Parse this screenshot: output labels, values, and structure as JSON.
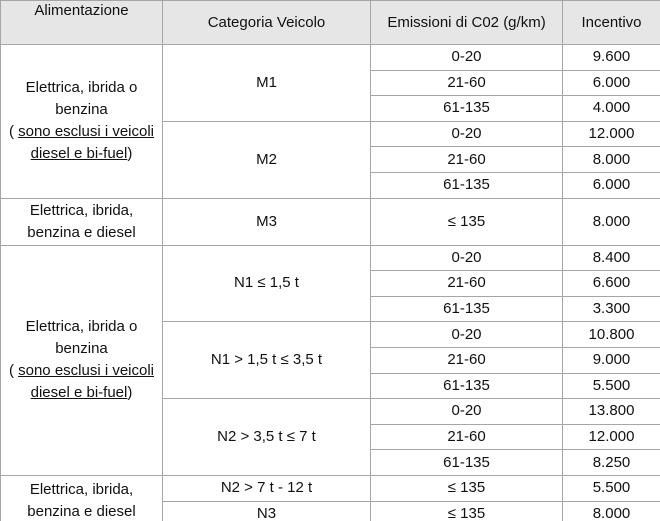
{
  "header": [
    "Alimentazione",
    "Categoria Veicolo",
    "Emissioni di C02 (g/km)",
    "Incentivo"
  ],
  "groups": [
    {
      "fuel": "Elettrica, ibrida o benzina",
      "note_open": "(",
      "note": "sono esclusi i veicoli diesel e bi-fuel",
      "note_close": ")",
      "categories": [
        {
          "name": "M1",
          "rows": [
            [
              "0-20",
              "9.600"
            ],
            [
              "21-60",
              "6.000"
            ],
            [
              "61-135",
              "4.000"
            ]
          ]
        },
        {
          "name": "M2",
          "rows": [
            [
              "0-20",
              "12.000"
            ],
            [
              "21-60",
              "8.000"
            ],
            [
              "61-135",
              "6.000"
            ]
          ]
        }
      ]
    },
    {
      "fuel": "Elettrica, ibrida, benzina e diesel",
      "categories": [
        {
          "name": "M3",
          "rows": [
            [
              "≤ 135",
              "8.000"
            ]
          ]
        }
      ]
    },
    {
      "fuel": "Elettrica, ibrida o benzina",
      "note_open": "(",
      "note": "sono esclusi i veicoli diesel e bi-fuel",
      "note_close": ")",
      "categories": [
        {
          "name": "N1 ≤ 1,5 t",
          "rows": [
            [
              "0-20",
              "8.400"
            ],
            [
              "21-60",
              "6.600"
            ],
            [
              "61-135",
              "3.300"
            ]
          ]
        },
        {
          "name": "N1 > 1,5 t ≤ 3,5 t",
          "rows": [
            [
              "0-20",
              "10.800"
            ],
            [
              "21-60",
              "9.000"
            ],
            [
              "61-135",
              "5.500"
            ]
          ]
        },
        {
          "name": "N2 > 3,5 t ≤ 7 t",
          "rows": [
            [
              "0-20",
              "13.800"
            ],
            [
              "21-60",
              "12.000"
            ],
            [
              "61-135",
              "8.250"
            ]
          ]
        }
      ]
    },
    {
      "fuel": "Elettrica, ibrida, benzina e diesel",
      "categories": [
        {
          "name": "N2 > 7 t - 12 t",
          "rows": [
            [
              "≤ 135",
              "5.500"
            ]
          ]
        },
        {
          "name": "N3",
          "rows": [
            [
              "≤ 135",
              "8.000"
            ]
          ]
        }
      ]
    }
  ]
}
